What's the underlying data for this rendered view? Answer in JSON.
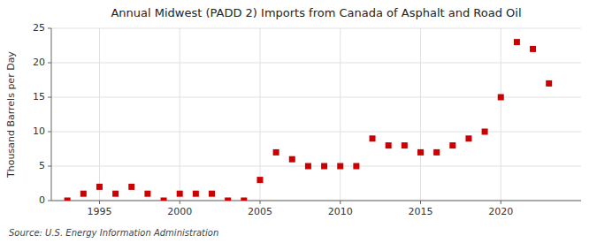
{
  "chart_data": {
    "type": "scatter",
    "title": "Annual Midwest (PADD 2) Imports from Canada of Asphalt and Road Oil",
    "ylabel": "Thousand Barrels per Day",
    "annotations": [
      "Source: U.S. Energy Information Administration"
    ],
    "x": [
      1993,
      1994,
      1995,
      1996,
      1997,
      1998,
      1999,
      2000,
      2001,
      2002,
      2003,
      2004,
      2005,
      2006,
      2007,
      2008,
      2009,
      2010,
      2011,
      2012,
      2013,
      2014,
      2015,
      2016,
      2017,
      2018,
      2019,
      2020,
      2021,
      2022,
      2023
    ],
    "values": [
      0.0,
      1.0,
      2.0,
      1.0,
      2.0,
      1.0,
      0.0,
      1.0,
      1.0,
      1.0,
      0.0,
      0.0,
      3.0,
      7.0,
      6.0,
      5.0,
      5.0,
      5.0,
      5.0,
      9.0,
      8.0,
      8.0,
      7.0,
      7.0,
      8.0,
      9.0,
      10.0,
      15.0,
      23.0,
      22.0,
      17.0
    ],
    "color": "#cc0000",
    "marker": "square",
    "xlim": [
      1992,
      2025
    ],
    "ylim": [
      0,
      25
    ],
    "xticks": [
      1995,
      2000,
      2005,
      2010,
      2015,
      2020
    ],
    "yticks": [
      0,
      5,
      10,
      15,
      20,
      25
    ],
    "grid": true
  }
}
